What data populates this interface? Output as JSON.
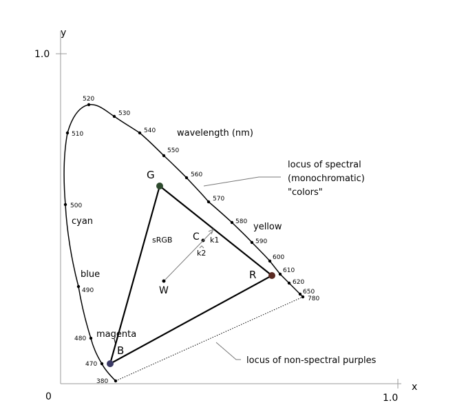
{
  "axes": {
    "x_label": "x",
    "y_label": "y",
    "origin": "0",
    "x_max": "1.0",
    "y_max": "1.0"
  },
  "wavelengths": [
    "380",
    "470",
    "480",
    "490",
    "500",
    "510",
    "520",
    "530",
    "540",
    "550",
    "560",
    "570",
    "580",
    "590",
    "600",
    "610",
    "620",
    "650",
    "780"
  ],
  "labels": {
    "wavelength": "wavelength (nm)",
    "locus_1": "locus of spectral",
    "locus_2": "(monochromatic)",
    "locus_3": "\"colors\"",
    "cyan": "cyan",
    "yellow": "yellow",
    "blue": "blue",
    "magenta": "magenta",
    "gamut": "sRGB",
    "G": "G",
    "R": "R",
    "B": "B",
    "C": "C",
    "W": "W",
    "k1": "k1",
    "k2": "k2",
    "purples": "locus of non-spectral purples"
  }
}
